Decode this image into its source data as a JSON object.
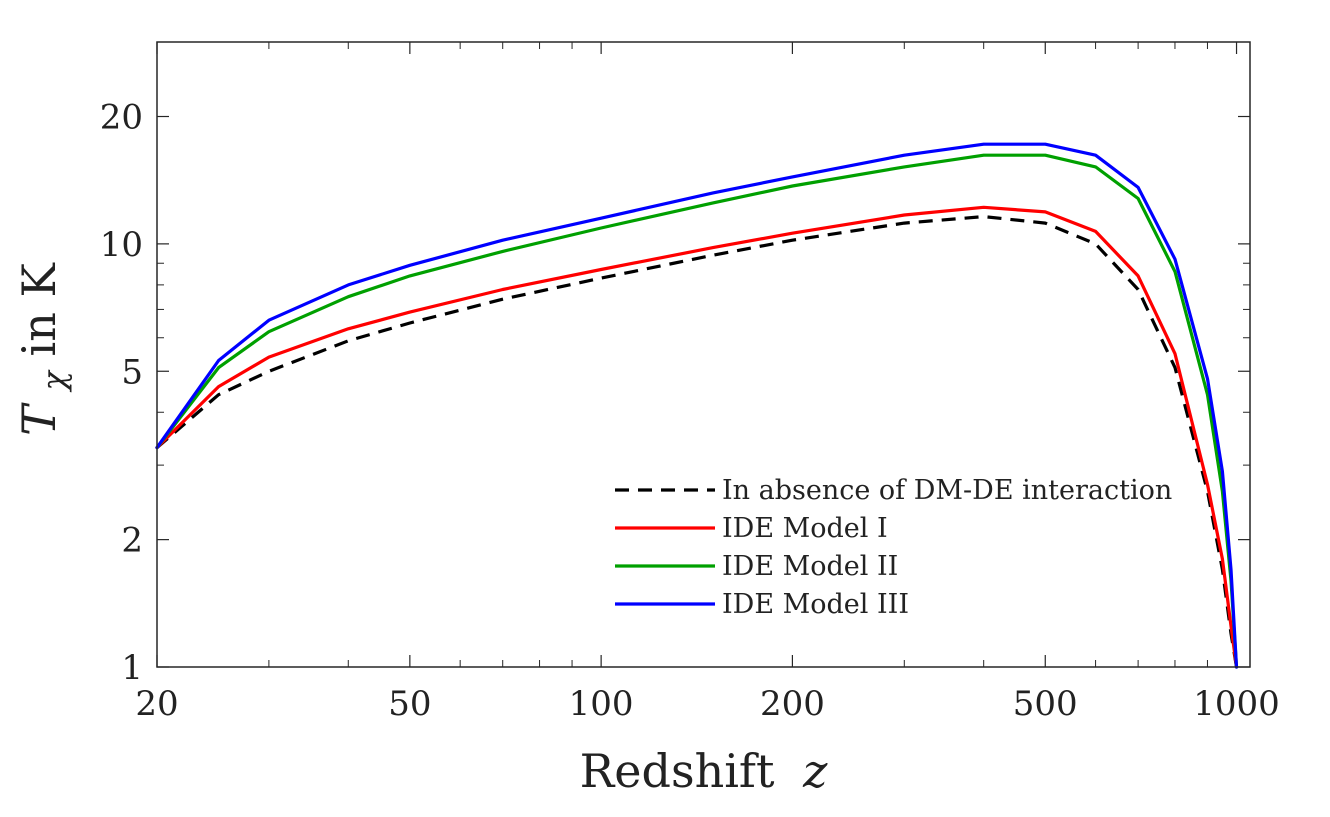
{
  "chart_data": {
    "type": "line",
    "title": "",
    "xlabel": "Redshift",
    "xlabel_var": "z",
    "ylabel_var": "T",
    "ylabel_sub": "χ",
    "ylabel_suffix": " in K",
    "xscale": "log",
    "yscale": "log",
    "xlim": [
      20,
      1050
    ],
    "ylim": [
      1,
      30
    ],
    "x_ticks": [
      20,
      50,
      100,
      200,
      500,
      1000
    ],
    "x_tick_labels": [
      "20",
      "50",
      "100",
      "200",
      "500",
      "1000"
    ],
    "y_ticks": [
      1,
      2,
      5,
      10,
      20
    ],
    "y_tick_labels": [
      "1",
      "2",
      "5",
      "10",
      "20"
    ],
    "legend_position": "bottom-right",
    "x": [
      20,
      25,
      30,
      40,
      50,
      70,
      100,
      150,
      200,
      300,
      400,
      500,
      600,
      700,
      800,
      900,
      950,
      980,
      1000
    ],
    "series": [
      {
        "name": "In absence of DM-DE interaction",
        "color": "#000000",
        "dash": "dashed",
        "values": [
          3.3,
          4.4,
          5.0,
          5.9,
          6.5,
          7.4,
          8.3,
          9.4,
          10.2,
          11.2,
          11.6,
          11.2,
          10.0,
          7.8,
          5.1,
          2.6,
          1.7,
          1.2,
          1.0
        ]
      },
      {
        "name": "IDE Model I",
        "color": "#ff0000",
        "dash": "solid",
        "values": [
          3.3,
          4.6,
          5.4,
          6.3,
          6.9,
          7.8,
          8.7,
          9.8,
          10.6,
          11.7,
          12.2,
          11.9,
          10.7,
          8.4,
          5.5,
          2.7,
          1.8,
          1.25,
          1.0
        ]
      },
      {
        "name": "IDE Model II",
        "color": "#00a000",
        "dash": "solid",
        "values": [
          3.3,
          5.1,
          6.2,
          7.5,
          8.4,
          9.6,
          10.9,
          12.5,
          13.7,
          15.2,
          16.2,
          16.2,
          15.2,
          12.8,
          8.6,
          4.4,
          2.6,
          1.6,
          1.0
        ]
      },
      {
        "name": "IDE Model III",
        "color": "#0000ff",
        "dash": "solid",
        "values": [
          3.3,
          5.3,
          6.6,
          8.0,
          8.9,
          10.2,
          11.5,
          13.2,
          14.4,
          16.2,
          17.2,
          17.2,
          16.2,
          13.6,
          9.2,
          4.8,
          2.9,
          1.7,
          1.0
        ]
      }
    ]
  }
}
